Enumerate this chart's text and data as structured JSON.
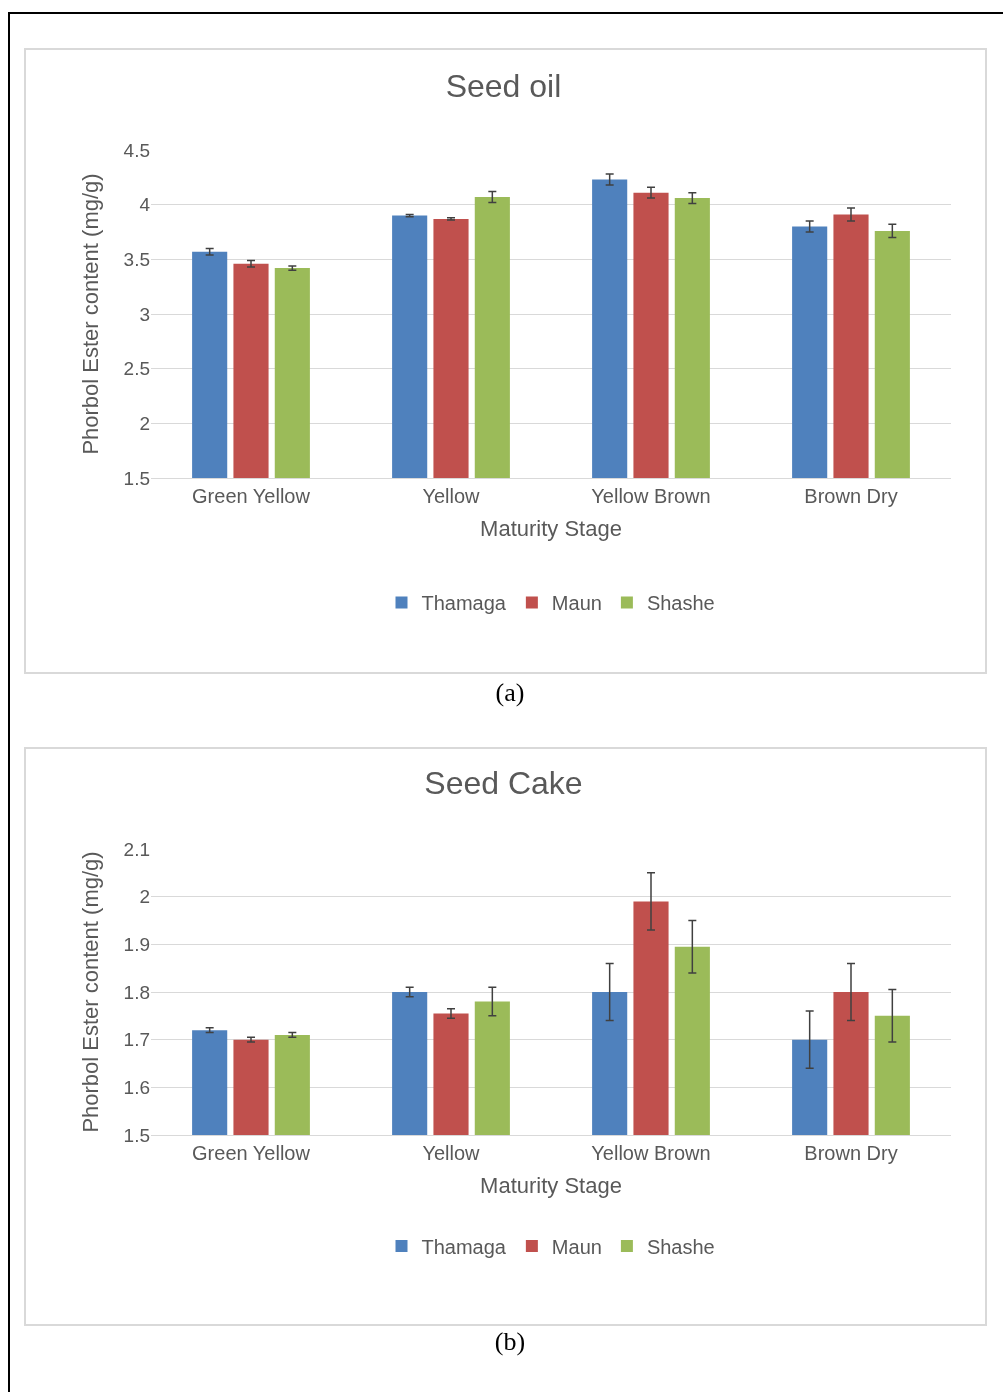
{
  "chart_data": [
    {
      "type": "bar",
      "title": "Seed oil",
      "xlabel": "Maturity Stage",
      "ylabel": "Phorbol Ester content (mg/g)",
      "categories": [
        "Green Yellow",
        "Yellow",
        "Yellow Brown",
        "Brown Dry"
      ],
      "series": [
        {
          "name": "Thamaga",
          "color": "#4f81bd",
          "values": [
            3.57,
            3.9,
            4.23,
            3.8
          ],
          "errors": [
            0.03,
            0.01,
            0.05,
            0.05
          ]
        },
        {
          "name": "Maun",
          "color": "#c0504d",
          "values": [
            3.46,
            3.87,
            4.11,
            3.91
          ],
          "errors": [
            0.03,
            0.01,
            0.05,
            0.06
          ]
        },
        {
          "name": "Shashe",
          "color": "#9bbb59",
          "values": [
            3.42,
            4.07,
            4.06,
            3.76
          ],
          "errors": [
            0.02,
            0.05,
            0.05,
            0.06
          ]
        }
      ],
      "ylim": [
        1.5,
        4.5
      ],
      "yticks": [
        1.5,
        2,
        2.5,
        3,
        3.5,
        4,
        4.5
      ],
      "grid": "y",
      "legend": "bottom",
      "annotations": [
        "(a)"
      ]
    },
    {
      "type": "bar",
      "title": "Seed Cake",
      "xlabel": "Maturity Stage",
      "ylabel": "Phorbol Ester content (mg/g)",
      "categories": [
        "Green Yellow",
        "Yellow",
        "Yellow Brown",
        "Brown Dry"
      ],
      "series": [
        {
          "name": "Thamaga",
          "color": "#4f81bd",
          "values": [
            1.72,
            1.8,
            1.8,
            1.7
          ],
          "errors": [
            0.005,
            0.01,
            0.06,
            0.06
          ]
        },
        {
          "name": "Maun",
          "color": "#c0504d",
          "values": [
            1.7,
            1.755,
            1.99,
            1.8
          ],
          "errors": [
            0.005,
            0.01,
            0.06,
            0.06
          ]
        },
        {
          "name": "Shashe",
          "color": "#9bbb59",
          "values": [
            1.71,
            1.78,
            1.895,
            1.75
          ],
          "errors": [
            0.005,
            0.03,
            0.055,
            0.055
          ]
        }
      ],
      "ylim": [
        1.5,
        2.1
      ],
      "yticks": [
        1.5,
        1.6,
        1.7,
        1.8,
        1.9,
        2,
        2.1
      ],
      "grid": "y",
      "legend": "bottom",
      "annotations": [
        "(b)"
      ]
    }
  ]
}
